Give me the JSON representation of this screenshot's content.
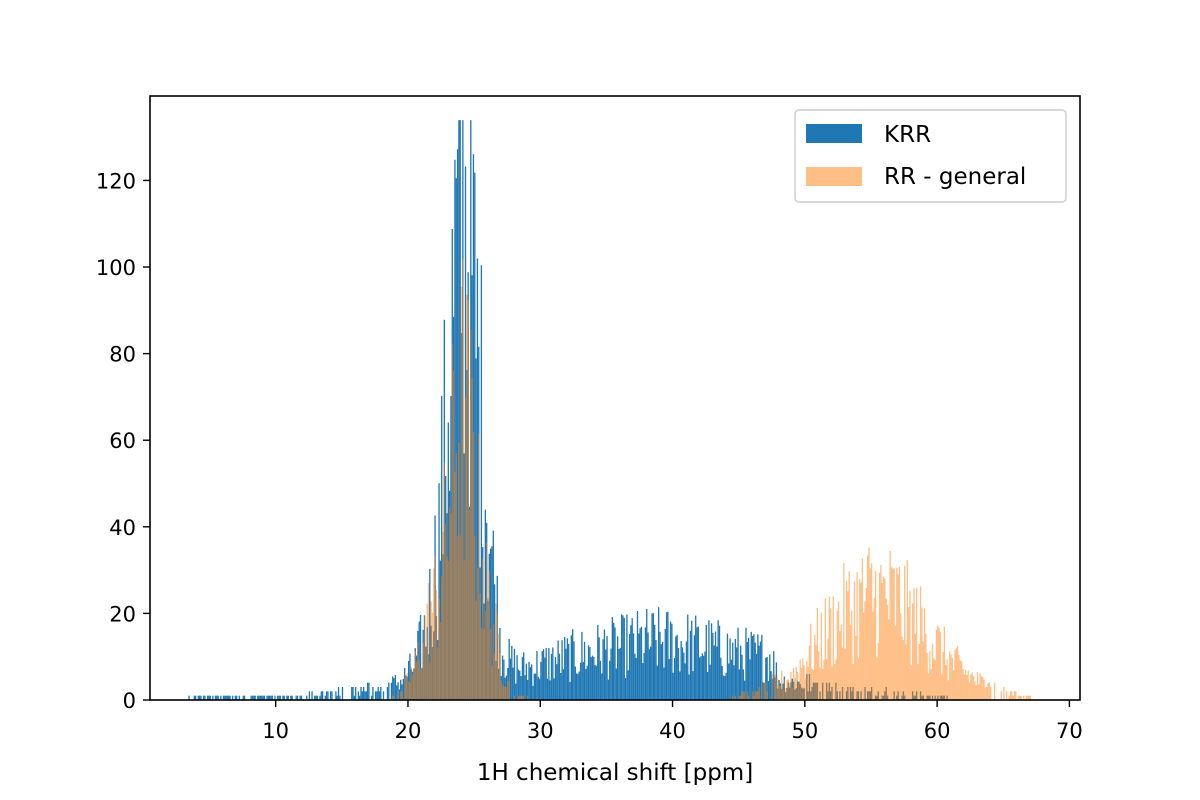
{
  "chart_data": {
    "type": "bar",
    "title": "",
    "xlabel": "1H chemical shift [ppm]",
    "ylabel": "",
    "xlim": [
      0.5,
      70.8
    ],
    "ylim": [
      0,
      139.5
    ],
    "x_ticks": [
      10,
      20,
      30,
      40,
      50,
      60,
      70
    ],
    "y_ticks": [
      0,
      20,
      40,
      60,
      80,
      100,
      120
    ],
    "grid": false,
    "legend_position": "top-right",
    "bin_width": 0.1,
    "series": [
      {
        "name": "KRR",
        "color": "#1f77b4",
        "opacity": 1.0,
        "envelope": [
          [
            3.0,
            0
          ],
          [
            4.0,
            1
          ],
          [
            10.0,
            1
          ],
          [
            12.0,
            1
          ],
          [
            15.0,
            2
          ],
          [
            18.0,
            3
          ],
          [
            19.5,
            5
          ],
          [
            20.5,
            9
          ],
          [
            21.5,
            20
          ],
          [
            22.3,
            40
          ],
          [
            23.0,
            75
          ],
          [
            23.6,
            110
          ],
          [
            24.2,
            125
          ],
          [
            24.7,
            115
          ],
          [
            25.3,
            85
          ],
          [
            25.9,
            55
          ],
          [
            26.5,
            30
          ],
          [
            27.0,
            15
          ],
          [
            27.6,
            10
          ],
          [
            28.5,
            8
          ],
          [
            30.0,
            9
          ],
          [
            32.0,
            11
          ],
          [
            35.0,
            13
          ],
          [
            38.0,
            15
          ],
          [
            40.0,
            15
          ],
          [
            42.0,
            14
          ],
          [
            45.0,
            12
          ],
          [
            47.5,
            11
          ],
          [
            48.0,
            5
          ],
          [
            50.0,
            4
          ],
          [
            53.0,
            3
          ],
          [
            55.0,
            2
          ],
          [
            58.0,
            1.5
          ],
          [
            60.0,
            1
          ],
          [
            62.0,
            0
          ]
        ]
      },
      {
        "name": "RR - general",
        "color": "#ff7f0e",
        "opacity": 0.5,
        "envelope": [
          [
            18.5,
            0
          ],
          [
            19.5,
            2
          ],
          [
            20.5,
            8
          ],
          [
            21.5,
            20
          ],
          [
            22.3,
            28
          ],
          [
            23.0,
            45
          ],
          [
            23.6,
            68
          ],
          [
            24.2,
            75
          ],
          [
            24.7,
            65
          ],
          [
            25.3,
            45
          ],
          [
            25.9,
            28
          ],
          [
            26.5,
            18
          ],
          [
            27.2,
            8
          ],
          [
            28.0,
            2
          ],
          [
            29.0,
            0.5
          ],
          [
            30.0,
            0
          ],
          [
            44.0,
            0
          ],
          [
            45.0,
            1
          ],
          [
            47.0,
            3
          ],
          [
            49.0,
            6
          ],
          [
            51.0,
            15
          ],
          [
            53.0,
            22
          ],
          [
            55.0,
            27
          ],
          [
            57.0,
            25
          ],
          [
            59.0,
            18
          ],
          [
            61.0,
            10
          ],
          [
            63.0,
            5
          ],
          [
            65.0,
            2
          ],
          [
            67.0,
            0.5
          ],
          [
            68.0,
            0
          ]
        ]
      }
    ]
  }
}
